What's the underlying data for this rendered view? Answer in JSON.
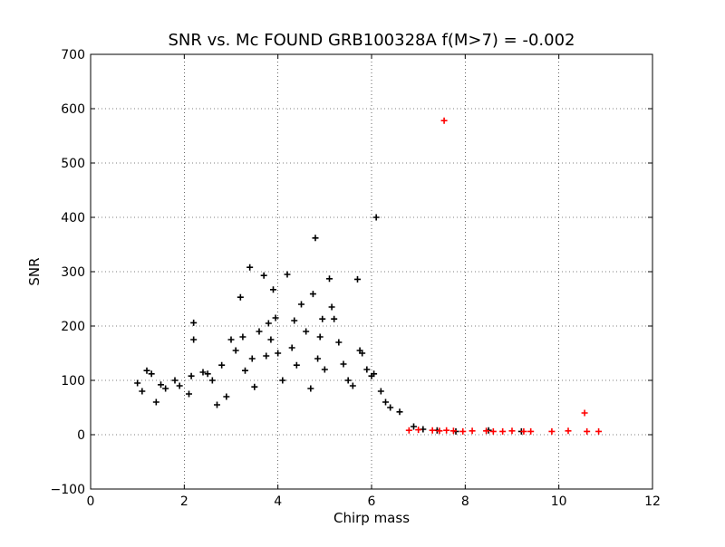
{
  "chart_data": {
    "type": "scatter",
    "title": "SNR vs. Mc FOUND GRB100328A f(M>7) = -0.002",
    "xlabel": "Chirp mass",
    "ylabel": "SNR",
    "xlim": [
      0,
      12
    ],
    "ylim": [
      -100,
      700
    ],
    "xticks": [
      "0",
      "2",
      "4",
      "6",
      "8",
      "10",
      "12"
    ],
    "yticks": [
      "−100",
      "0",
      "100",
      "200",
      "300",
      "400",
      "500",
      "600",
      "700"
    ],
    "grid": true,
    "marker": "plus",
    "series": [
      {
        "color": "#000000",
        "points": [
          [
            1.0,
            95
          ],
          [
            1.1,
            80
          ],
          [
            1.2,
            118
          ],
          [
            1.3,
            112
          ],
          [
            1.4,
            60
          ],
          [
            1.5,
            92
          ],
          [
            1.6,
            85
          ],
          [
            1.8,
            100
          ],
          [
            1.9,
            90
          ],
          [
            2.1,
            75
          ],
          [
            2.15,
            108
          ],
          [
            2.2,
            206
          ],
          [
            2.2,
            175
          ],
          [
            2.4,
            115
          ],
          [
            2.5,
            112
          ],
          [
            2.6,
            100
          ],
          [
            2.7,
            55
          ],
          [
            2.8,
            128
          ],
          [
            2.9,
            70
          ],
          [
            3.0,
            175
          ],
          [
            3.1,
            155
          ],
          [
            3.2,
            253
          ],
          [
            3.25,
            180
          ],
          [
            3.3,
            118
          ],
          [
            3.4,
            308
          ],
          [
            3.45,
            140
          ],
          [
            3.5,
            88
          ],
          [
            3.6,
            190
          ],
          [
            3.7,
            293
          ],
          [
            3.75,
            145
          ],
          [
            3.8,
            205
          ],
          [
            3.85,
            175
          ],
          [
            3.9,
            267
          ],
          [
            3.95,
            215
          ],
          [
            4.0,
            150
          ],
          [
            4.1,
            100
          ],
          [
            4.2,
            295
          ],
          [
            4.3,
            160
          ],
          [
            4.35,
            210
          ],
          [
            4.4,
            128
          ],
          [
            4.5,
            240
          ],
          [
            4.6,
            190
          ],
          [
            4.7,
            85
          ],
          [
            4.75,
            259
          ],
          [
            4.8,
            362
          ],
          [
            4.85,
            140
          ],
          [
            4.9,
            180
          ],
          [
            4.95,
            213
          ],
          [
            5.0,
            120
          ],
          [
            5.1,
            287
          ],
          [
            5.15,
            235
          ],
          [
            5.2,
            213
          ],
          [
            5.3,
            170
          ],
          [
            5.4,
            130
          ],
          [
            5.5,
            100
          ],
          [
            5.6,
            90
          ],
          [
            5.7,
            286
          ],
          [
            5.75,
            155
          ],
          [
            5.8,
            150
          ],
          [
            5.9,
            120
          ],
          [
            6.0,
            108
          ],
          [
            6.05,
            112
          ],
          [
            6.1,
            400
          ],
          [
            6.2,
            80
          ],
          [
            6.3,
            60
          ],
          [
            6.4,
            50
          ],
          [
            6.6,
            42
          ],
          [
            6.9,
            15
          ],
          [
            7.1,
            10
          ],
          [
            7.4,
            8
          ],
          [
            7.8,
            6
          ],
          [
            8.5,
            8
          ],
          [
            9.2,
            6
          ]
        ]
      },
      {
        "color": "#ff0000",
        "points": [
          [
            7.55,
            578
          ],
          [
            10.55,
            40
          ],
          [
            10.6,
            6
          ],
          [
            10.85,
            6
          ],
          [
            10.2,
            7
          ],
          [
            9.85,
            6
          ],
          [
            9.4,
            6
          ],
          [
            9.25,
            6
          ],
          [
            9.0,
            7
          ],
          [
            8.8,
            6
          ],
          [
            8.6,
            6
          ],
          [
            8.45,
            7
          ],
          [
            8.15,
            7
          ],
          [
            7.95,
            6
          ],
          [
            7.75,
            7
          ],
          [
            7.6,
            8
          ],
          [
            7.45,
            7
          ],
          [
            7.3,
            8
          ],
          [
            7.0,
            9
          ],
          [
            6.8,
            8
          ]
        ]
      }
    ]
  }
}
